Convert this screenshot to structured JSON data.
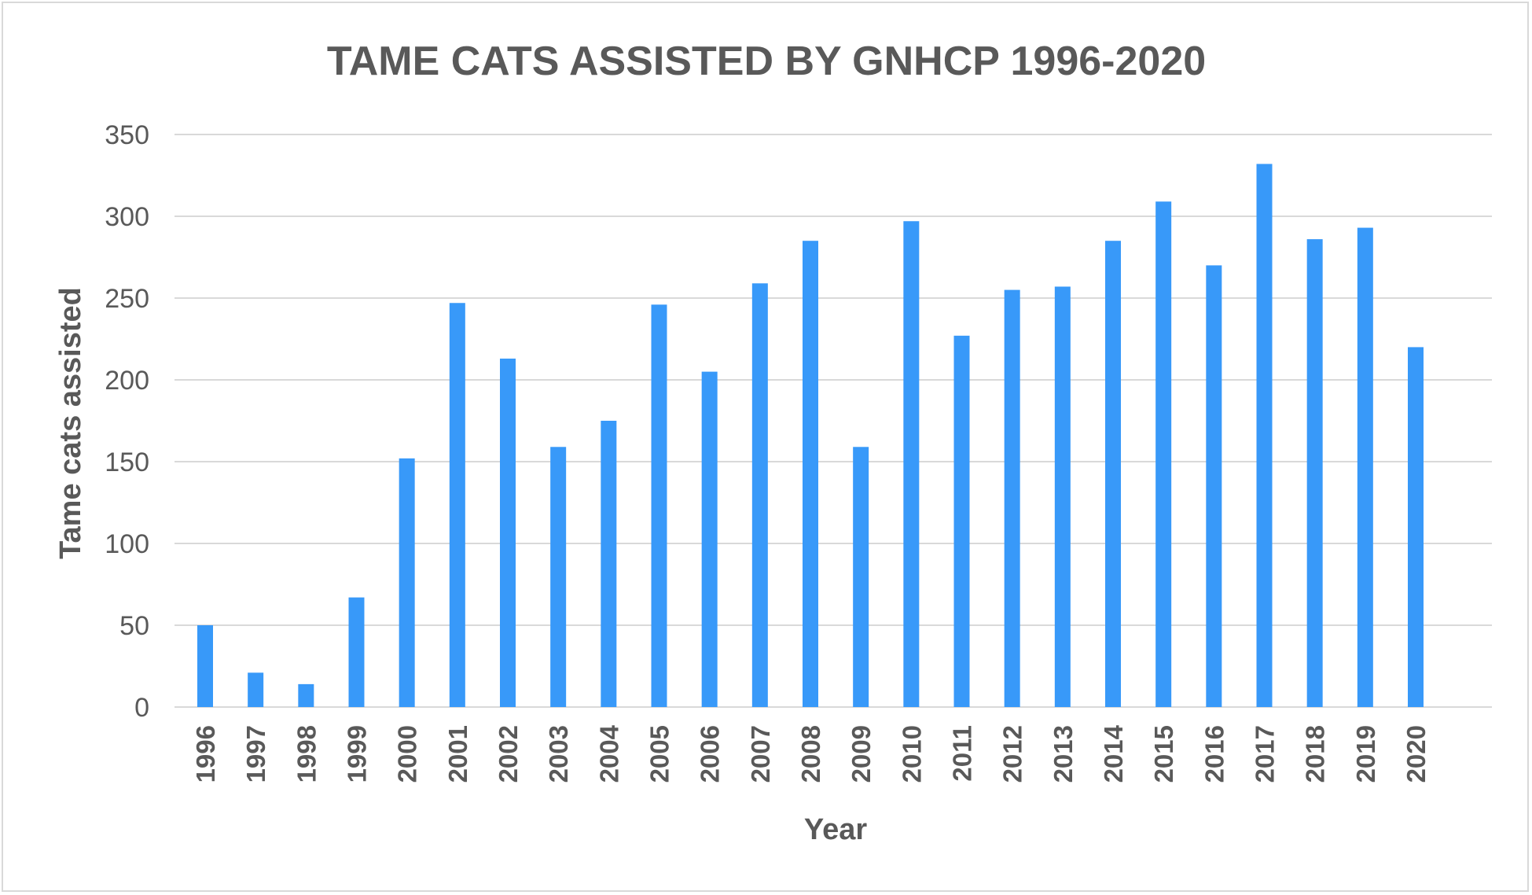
{
  "chart_data": {
    "type": "bar",
    "title": "TAME CATS ASSISTED BY GNHCP 1996-2020",
    "xlabel": "Year",
    "ylabel": "Tame cats assisted",
    "ylim": [
      0,
      350
    ],
    "yticks": [
      0,
      50,
      100,
      150,
      200,
      250,
      300,
      350
    ],
    "grid": true,
    "legend": "none",
    "bar_color": "#3899f9",
    "categories": [
      "1996",
      "1997",
      "1998",
      "1999",
      "2000",
      "2001",
      "2002",
      "2003",
      "2004",
      "2005",
      "2006",
      "2007",
      "2008",
      "2009",
      "2010",
      "2011",
      "2012",
      "2013",
      "2014",
      "2015",
      "2016",
      "2017",
      "2018",
      "2019",
      "2020"
    ],
    "values": [
      50,
      21,
      14,
      67,
      152,
      247,
      213,
      159,
      175,
      246,
      205,
      259,
      285,
      159,
      297,
      227,
      255,
      257,
      285,
      309,
      270,
      332,
      286,
      293,
      220
    ]
  }
}
